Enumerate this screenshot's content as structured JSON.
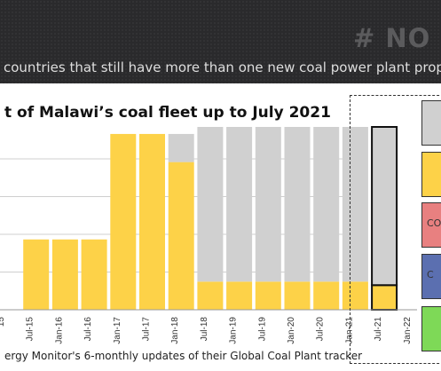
{
  "header": {
    "tag": "# NO NE",
    "subtitle": "countries that still have more than one new coal power plant proposed"
  },
  "colors": {
    "header_bg": "#2a2a2c",
    "yellow": "#fdd248",
    "grey": "#d0d0d0",
    "pink": "#e88080",
    "blue": "#5b6fb0",
    "green": "#7ed957"
  },
  "chart_data": {
    "type": "bar",
    "title": "t of Malawi’s coal fleet up to July 2021",
    "source": "ergy Monitor's 6-monthly updates of their Global Coal Plant tracker",
    "categories": [
      "Jul-15",
      "Jan-16",
      "Jul-16",
      "Jan-17",
      "Jul-17",
      "Jan-18",
      "Jul-18",
      "Jan-19",
      "Jul-19",
      "Jan-20",
      "Jul-20",
      "Jan-21",
      "Jul-21"
    ],
    "x_tick_labels": [
      "15",
      "Jul-15",
      "Jan-16",
      "Jul-16",
      "Jan-17",
      "Jul-17",
      "Jan-18",
      "Jul-18",
      "Jan-19",
      "Jul-19",
      "Jan-20",
      "Jul-20",
      "Jan-21",
      "Jul-21",
      "Jan-22"
    ],
    "series": [
      {
        "color": "#fdd248",
        "values": [
          1.0,
          1.0,
          1.0,
          2.5,
          2.5,
          2.1,
          0.4,
          0.4,
          0.4,
          0.4,
          0.4,
          0.4,
          0.35
        ]
      },
      {
        "color": "#d0d0d0",
        "values": [
          0,
          0,
          0,
          0,
          0,
          0.4,
          2.2,
          2.2,
          2.2,
          2.2,
          2.2,
          2.2,
          2.25
        ]
      }
    ],
    "highlight_category": "Jul-21",
    "ylim": [
      0,
      2.6
    ],
    "grid": true,
    "legend": {
      "placement": "right",
      "entries": [
        {
          "color": "#d0d0d0",
          "label": ""
        },
        {
          "color": "#fdd248",
          "label": ""
        },
        {
          "color": "#e88080",
          "label": "CO"
        },
        {
          "color": "#5b6fb0",
          "label": "C"
        },
        {
          "color": "#7ed957",
          "label": ""
        }
      ]
    }
  }
}
